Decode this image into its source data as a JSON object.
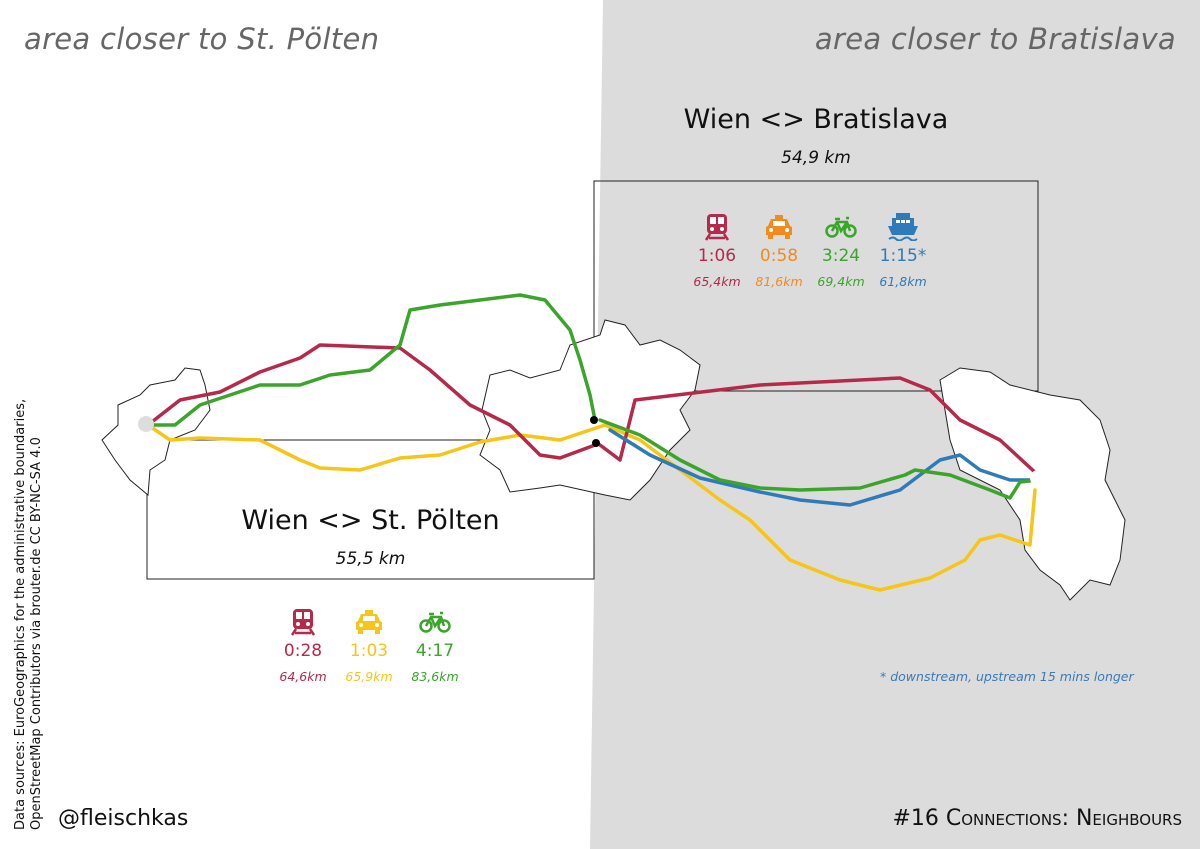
{
  "header": {
    "left_region": "area closer to St. Pölten",
    "right_region": "area closer to Bratislava"
  },
  "colors": {
    "train": "#b5294a",
    "car_left": "#f5c518",
    "car_right": "#f28a1e",
    "bike": "#3aa52a",
    "ship": "#2f7ab8",
    "right_bg": "#dcdcdc"
  },
  "bratislava": {
    "title": "Wien <> Bratislava",
    "distance": "54,9 km",
    "modes": [
      {
        "mode": "train",
        "icon": "train-icon",
        "time": "1:06",
        "km": "65,4km"
      },
      {
        "mode": "car",
        "icon": "car-icon",
        "time": "0:58",
        "km": "81,6km"
      },
      {
        "mode": "bike",
        "icon": "bike-icon",
        "time": "3:24",
        "km": "69,4km"
      },
      {
        "mode": "ship",
        "icon": "ship-icon",
        "time": "1:15*",
        "km": "61,8km"
      }
    ],
    "note": "* downstream, upstream 15 mins longer"
  },
  "stpoelten": {
    "title": "Wien <> St. Pölten",
    "distance": "55,5 km",
    "modes": [
      {
        "mode": "train",
        "icon": "train-icon",
        "time": "0:28",
        "km": "64,6km"
      },
      {
        "mode": "car",
        "icon": "car-icon",
        "time": "1:03",
        "km": "65,9km"
      },
      {
        "mode": "bike",
        "icon": "bike-icon",
        "time": "4:17",
        "km": "83,6km"
      }
    ]
  },
  "credits": {
    "line1": "Data sources: EuroGeographics for the administrative boundaries,",
    "line2": "OpenStreetMap Contributors via brouter.de CC BY-NC-SA 4.0"
  },
  "footer": {
    "author": "@fleischkas",
    "tag": "#16 Connections: Neighbours"
  }
}
